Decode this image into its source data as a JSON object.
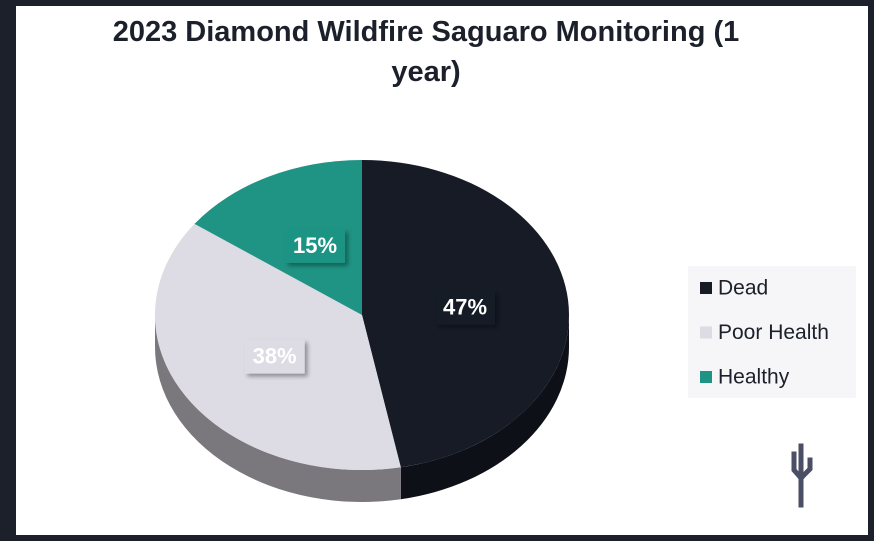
{
  "chart_data": {
    "type": "pie",
    "title": "2023 Diamond Wildfire Saguaro Monitoring (1 year)",
    "categories": [
      "Dead",
      "Poor Health",
      "Healthy"
    ],
    "values": [
      47,
      38,
      15
    ],
    "value_labels": [
      "47%",
      "38%",
      "15%"
    ],
    "colors": [
      "#161b26",
      "#dddbe3",
      "#1f9484"
    ],
    "legend": "right"
  }
}
